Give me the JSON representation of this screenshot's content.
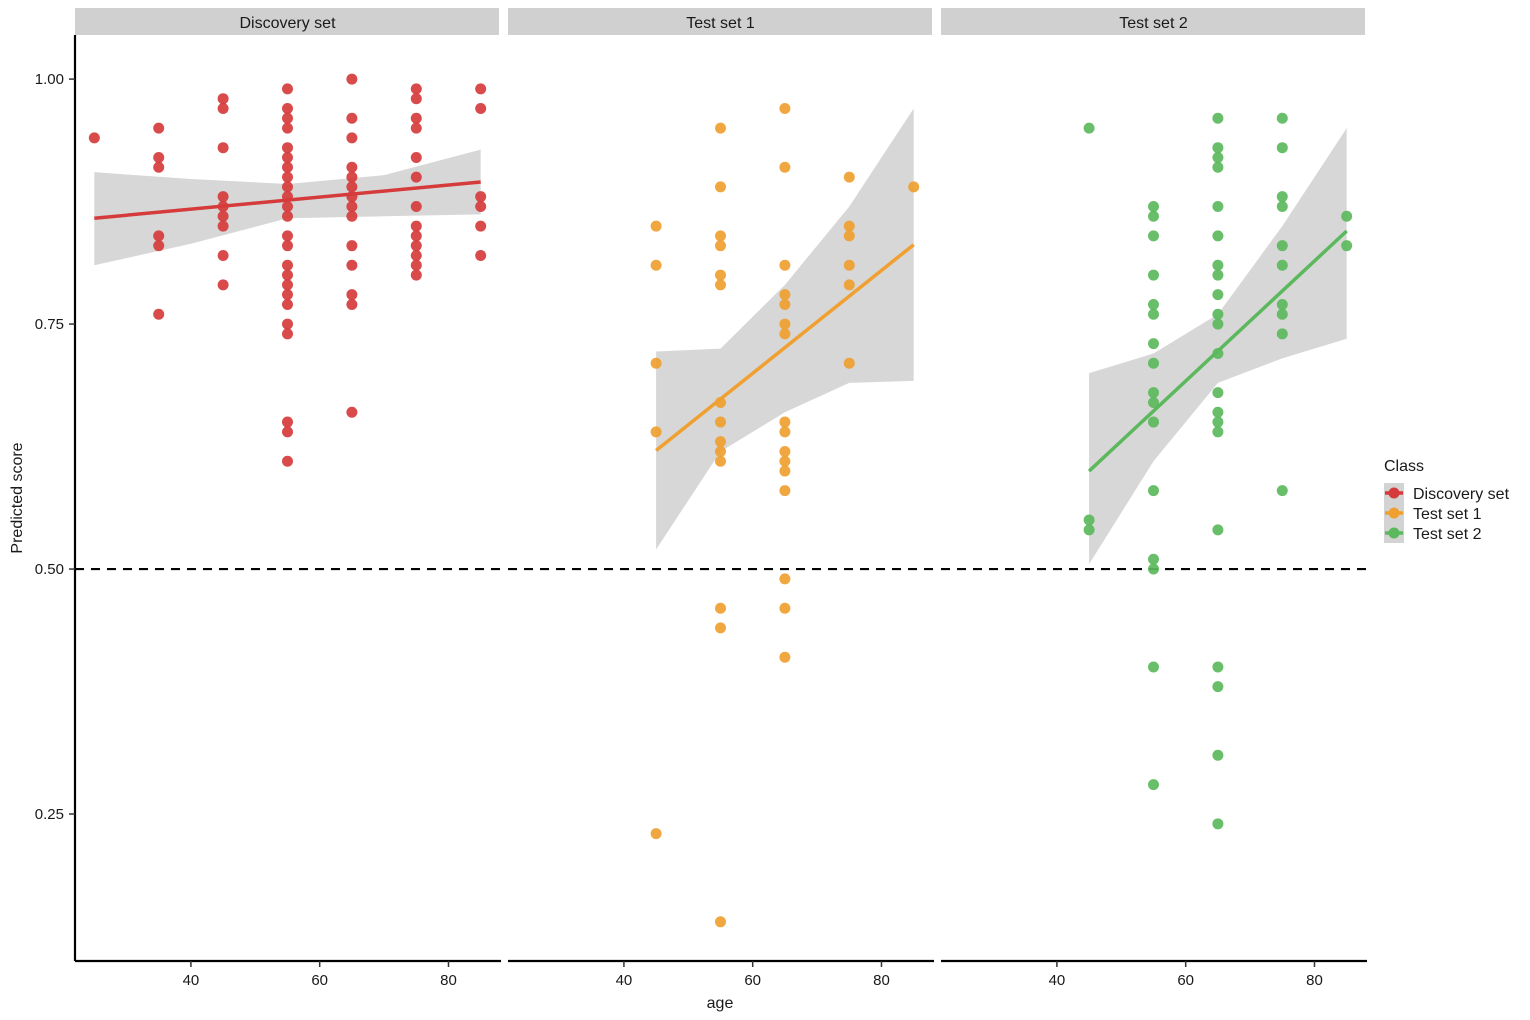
{
  "chart_data": {
    "type": "scatter",
    "facets": [
      "Discovery set",
      "Test set 1",
      "Test set 2"
    ],
    "xlabel": "age",
    "ylabel": "Predicted score",
    "x_ticks": [
      40,
      60,
      80
    ],
    "y_ticks": [
      0.25,
      0.5,
      0.75,
      1.0
    ],
    "y_tick_labels": [
      "0.25",
      "0.50",
      "0.75",
      "1.00"
    ],
    "xlim": [
      22,
      88
    ],
    "ylim": [
      0.1,
      1.045
    ],
    "reference_line": {
      "y": 0.5,
      "style": "dashed"
    },
    "legend": {
      "title": "Class",
      "position": "right",
      "entries": [
        "Discovery set",
        "Test set 1",
        "Test set 2"
      ]
    },
    "colors": {
      "Discovery set": "#d63b3b",
      "Test set 1": "#f0a030",
      "Test set 2": "#5cb85c",
      "band": "#d3d3d3",
      "strip": "#d0d0d0"
    },
    "series": [
      {
        "name": "Discovery set",
        "points": [
          [
            25,
            0.94
          ],
          [
            35,
            0.95
          ],
          [
            35,
            0.92
          ],
          [
            35,
            0.91
          ],
          [
            35,
            0.84
          ],
          [
            35,
            0.83
          ],
          [
            35,
            0.76
          ],
          [
            45,
            0.98
          ],
          [
            45,
            0.97
          ],
          [
            45,
            0.93
          ],
          [
            45,
            0.88
          ],
          [
            45,
            0.87
          ],
          [
            45,
            0.86
          ],
          [
            45,
            0.85
          ],
          [
            45,
            0.82
          ],
          [
            45,
            0.79
          ],
          [
            55,
            0.99
          ],
          [
            55,
            0.97
          ],
          [
            55,
            0.96
          ],
          [
            55,
            0.95
          ],
          [
            55,
            0.93
          ],
          [
            55,
            0.92
          ],
          [
            55,
            0.91
          ],
          [
            55,
            0.9
          ],
          [
            55,
            0.89
          ],
          [
            55,
            0.88
          ],
          [
            55,
            0.87
          ],
          [
            55,
            0.86
          ],
          [
            55,
            0.84
          ],
          [
            55,
            0.83
          ],
          [
            55,
            0.81
          ],
          [
            55,
            0.8
          ],
          [
            55,
            0.79
          ],
          [
            55,
            0.78
          ],
          [
            55,
            0.77
          ],
          [
            55,
            0.75
          ],
          [
            55,
            0.74
          ],
          [
            55,
            0.65
          ],
          [
            55,
            0.64
          ],
          [
            55,
            0.61
          ],
          [
            65,
            1.0
          ],
          [
            65,
            0.96
          ],
          [
            65,
            0.94
          ],
          [
            65,
            0.91
          ],
          [
            65,
            0.9
          ],
          [
            65,
            0.89
          ],
          [
            65,
            0.88
          ],
          [
            65,
            0.87
          ],
          [
            65,
            0.86
          ],
          [
            65,
            0.83
          ],
          [
            65,
            0.81
          ],
          [
            65,
            0.78
          ],
          [
            65,
            0.77
          ],
          [
            65,
            0.66
          ],
          [
            75,
            0.99
          ],
          [
            75,
            0.98
          ],
          [
            75,
            0.96
          ],
          [
            75,
            0.95
          ],
          [
            75,
            0.92
          ],
          [
            75,
            0.9
          ],
          [
            75,
            0.87
          ],
          [
            75,
            0.85
          ],
          [
            75,
            0.84
          ],
          [
            75,
            0.83
          ],
          [
            75,
            0.82
          ],
          [
            75,
            0.81
          ],
          [
            75,
            0.8
          ],
          [
            85,
            0.99
          ],
          [
            85,
            0.97
          ],
          [
            85,
            0.88
          ],
          [
            85,
            0.87
          ],
          [
            85,
            0.85
          ],
          [
            85,
            0.82
          ]
        ],
        "fit": {
          "x": [
            25,
            85
          ],
          "y": [
            0.858,
            0.895
          ]
        },
        "band": {
          "x": [
            25,
            40,
            55,
            70,
            85
          ],
          "upper": [
            0.905,
            0.898,
            0.893,
            0.902,
            0.928
          ],
          "lower": [
            0.81,
            0.832,
            0.858,
            0.86,
            0.862
          ]
        }
      },
      {
        "name": "Test set 1",
        "points": [
          [
            45,
            0.85
          ],
          [
            45,
            0.81
          ],
          [
            45,
            0.71
          ],
          [
            45,
            0.64
          ],
          [
            45,
            0.23
          ],
          [
            55,
            0.95
          ],
          [
            55,
            0.89
          ],
          [
            55,
            0.84
          ],
          [
            55,
            0.83
          ],
          [
            55,
            0.8
          ],
          [
            55,
            0.79
          ],
          [
            55,
            0.67
          ],
          [
            55,
            0.65
          ],
          [
            55,
            0.63
          ],
          [
            55,
            0.62
          ],
          [
            55,
            0.61
          ],
          [
            55,
            0.46
          ],
          [
            55,
            0.44
          ],
          [
            55,
            0.14
          ],
          [
            65,
            0.97
          ],
          [
            65,
            0.91
          ],
          [
            65,
            0.81
          ],
          [
            65,
            0.78
          ],
          [
            65,
            0.77
          ],
          [
            65,
            0.75
          ],
          [
            65,
            0.74
          ],
          [
            65,
            0.65
          ],
          [
            65,
            0.64
          ],
          [
            65,
            0.62
          ],
          [
            65,
            0.61
          ],
          [
            65,
            0.6
          ],
          [
            65,
            0.58
          ],
          [
            65,
            0.49
          ],
          [
            65,
            0.46
          ],
          [
            65,
            0.41
          ],
          [
            75,
            0.9
          ],
          [
            75,
            0.85
          ],
          [
            75,
            0.84
          ],
          [
            75,
            0.81
          ],
          [
            75,
            0.79
          ],
          [
            75,
            0.71
          ],
          [
            85,
            0.89
          ]
        ],
        "fit": {
          "x": [
            45,
            85
          ],
          "y": [
            0.621,
            0.831
          ]
        },
        "band": {
          "x": [
            45,
            55,
            65,
            75,
            85
          ],
          "upper": [
            0.722,
            0.725,
            0.79,
            0.87,
            0.97
          ],
          "lower": [
            0.52,
            0.62,
            0.66,
            0.69,
            0.692
          ]
        }
      },
      {
        "name": "Test set 2",
        "points": [
          [
            45,
            0.95
          ],
          [
            45,
            0.55
          ],
          [
            45,
            0.54
          ],
          [
            55,
            0.87
          ],
          [
            55,
            0.86
          ],
          [
            55,
            0.84
          ],
          [
            55,
            0.8
          ],
          [
            55,
            0.77
          ],
          [
            55,
            0.76
          ],
          [
            55,
            0.73
          ],
          [
            55,
            0.71
          ],
          [
            55,
            0.68
          ],
          [
            55,
            0.67
          ],
          [
            55,
            0.65
          ],
          [
            55,
            0.58
          ],
          [
            55,
            0.51
          ],
          [
            55,
            0.5
          ],
          [
            55,
            0.4
          ],
          [
            55,
            0.28
          ],
          [
            65,
            0.96
          ],
          [
            65,
            0.93
          ],
          [
            65,
            0.92
          ],
          [
            65,
            0.91
          ],
          [
            65,
            0.87
          ],
          [
            65,
            0.84
          ],
          [
            65,
            0.81
          ],
          [
            65,
            0.8
          ],
          [
            65,
            0.78
          ],
          [
            65,
            0.76
          ],
          [
            65,
            0.75
          ],
          [
            65,
            0.72
          ],
          [
            65,
            0.68
          ],
          [
            65,
            0.66
          ],
          [
            65,
            0.65
          ],
          [
            65,
            0.64
          ],
          [
            65,
            0.54
          ],
          [
            65,
            0.4
          ],
          [
            65,
            0.38
          ],
          [
            65,
            0.31
          ],
          [
            65,
            0.24
          ],
          [
            75,
            0.96
          ],
          [
            75,
            0.93
          ],
          [
            75,
            0.88
          ],
          [
            75,
            0.87
          ],
          [
            75,
            0.83
          ],
          [
            75,
            0.81
          ],
          [
            75,
            0.77
          ],
          [
            75,
            0.76
          ],
          [
            75,
            0.74
          ],
          [
            75,
            0.58
          ],
          [
            85,
            0.86
          ],
          [
            85,
            0.83
          ]
        ],
        "fit": {
          "x": [
            45,
            85
          ],
          "y": [
            0.6,
            0.845
          ]
        },
        "band": {
          "x": [
            45,
            55,
            65,
            75,
            85
          ],
          "upper": [
            0.7,
            0.72,
            0.76,
            0.85,
            0.95
          ],
          "lower": [
            0.505,
            0.61,
            0.69,
            0.715,
            0.735
          ]
        }
      }
    ]
  }
}
